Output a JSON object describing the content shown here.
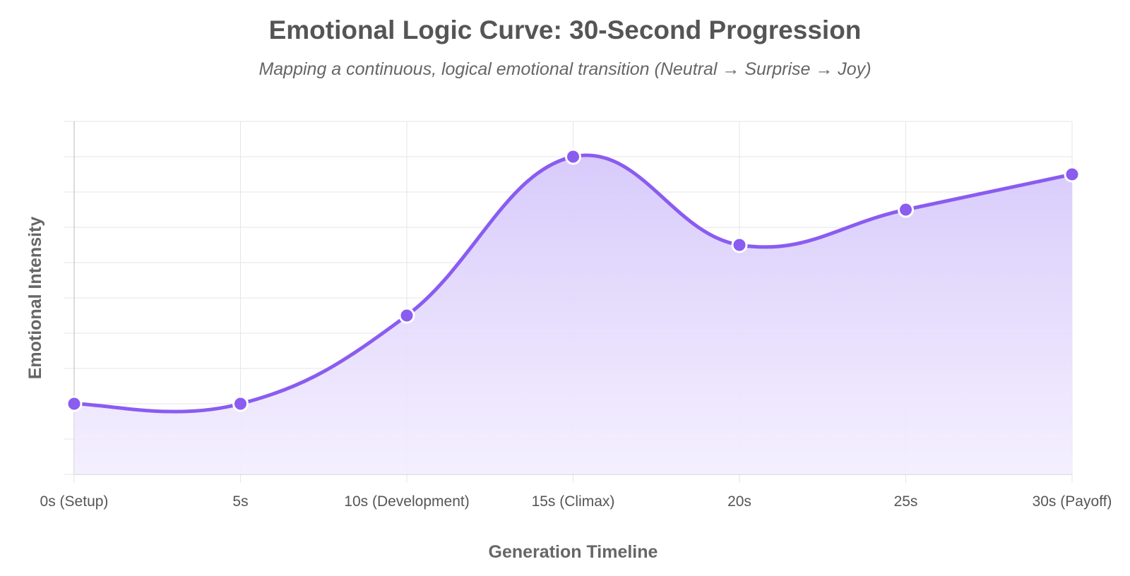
{
  "chart_data": {
    "type": "area",
    "title": "Emotional Logic Curve: 30-Second Progression",
    "subtitle": "Mapping a continuous, logical emotional transition (Neutral → Surprise → Joy)",
    "xlabel": "Generation Timeline",
    "ylabel": "Emotional Intensity",
    "categories": [
      "0s (Setup)",
      "5s",
      "10s (Development)",
      "15s (Climax)",
      "20s",
      "25s",
      "30s (Payoff)"
    ],
    "values": [
      2,
      2,
      4.5,
      9,
      6.5,
      7.5,
      8.5
    ],
    "ylim": [
      0,
      10
    ],
    "y_ticks_labeled": false,
    "grid": true,
    "legend": "none",
    "curve": "smooth",
    "colors": {
      "line": "#8a5cf0",
      "point_fill": "#8a5cf0",
      "point_stroke": "#ffffff",
      "fill_top": "#d6c8fb",
      "fill_bottom": "#f3eefe",
      "grid": "#e6e6e6"
    }
  }
}
